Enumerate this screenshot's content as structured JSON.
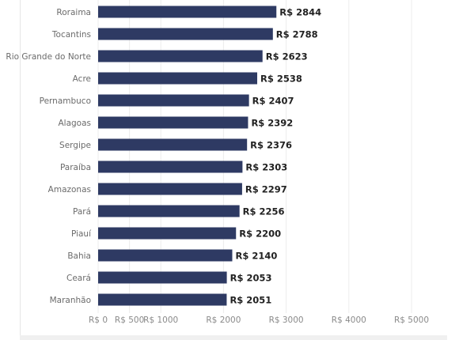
{
  "chart_data": {
    "type": "hbar",
    "categories": [
      "Roraima",
      "Tocantins",
      "Rio Grande do Norte",
      "Acre",
      "Pernambuco",
      "Alagoas",
      "Sergipe",
      "Paraíba",
      "Amazonas",
      "Pará",
      "Piauí",
      "Bahia",
      "Ceará",
      "Maranhão"
    ],
    "values": [
      2844,
      2788,
      2623,
      2538,
      2407,
      2392,
      2376,
      2303,
      2297,
      2256,
      2200,
      2140,
      2053,
      2051
    ],
    "value_labels": [
      "R$ 2844",
      "R$ 2788",
      "R$ 2623",
      "R$ 2538",
      "R$ 2407",
      "R$ 2392",
      "R$ 2376",
      "R$ 2303",
      "R$ 2297",
      "R$ 2256",
      "R$ 2200",
      "R$ 2140",
      "R$ 2053",
      "R$ 2051"
    ],
    "color": "#2e3a63",
    "xlim": [
      0,
      5000
    ],
    "xticks": [
      {
        "value": 0,
        "label": "R$ 0"
      },
      {
        "value": 500,
        "label": "R$ 500"
      },
      {
        "value": 1000,
        "label": "R$ 1000"
      },
      {
        "value": 2000,
        "label": "R$ 2000"
      },
      {
        "value": 3000,
        "label": "R$ 3000"
      },
      {
        "value": 4000,
        "label": "R$ 4000"
      },
      {
        "value": 5000,
        "label": "R$ 5000"
      }
    ],
    "grid": true
  }
}
